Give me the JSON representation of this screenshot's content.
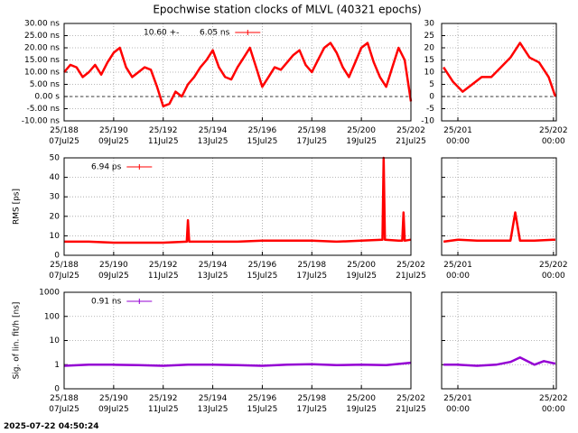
{
  "title": "Epochwise station clocks of MLVL (40321 epochs)",
  "timestamp": "2025-07-22 04:50:24",
  "chart_data": [
    {
      "type": "line",
      "legend_prefix": "10.60 +-",
      "x": [
        188,
        188.25,
        188.5,
        188.75,
        189,
        189.25,
        189.5,
        189.75,
        190,
        190.25,
        190.5,
        190.75,
        191,
        191.25,
        191.5,
        191.75,
        192,
        192.25,
        192.5,
        192.75,
        193,
        193.25,
        193.5,
        193.75,
        194,
        194.25,
        194.5,
        194.75,
        195,
        195.25,
        195.5,
        195.75,
        196,
        196.25,
        196.5,
        196.75,
        197,
        197.25,
        197.5,
        197.75,
        198,
        198.25,
        198.5,
        198.75,
        199,
        199.25,
        199.5,
        199.75,
        200,
        200.25,
        200.5,
        200.75,
        201,
        201.25,
        201.5,
        201.75,
        202
      ],
      "series": [
        {
          "name": "6.05 ns",
          "color": "#ff0000",
          "values": [
            10,
            13,
            12,
            8,
            10,
            13,
            9,
            14,
            18,
            20,
            12,
            8,
            10,
            12,
            11,
            4,
            -4,
            -3,
            2,
            0,
            5,
            8,
            12,
            15,
            19,
            12,
            8,
            7,
            12,
            16,
            20,
            12,
            4,
            8,
            12,
            11,
            14,
            17,
            19,
            13,
            10,
            15,
            20,
            22,
            18,
            12,
            8,
            14,
            20,
            22,
            14,
            8,
            4,
            12,
            20,
            15,
            -2
          ]
        }
      ],
      "xlim": [
        188,
        202
      ],
      "xticks": [
        {
          "value": 188,
          "label": "25/188\n07Jul25"
        },
        {
          "value": 190,
          "label": "25/190\n09Jul25"
        },
        {
          "value": 192,
          "label": "25/192\n11Jul25"
        },
        {
          "value": 194,
          "label": "25/194\n13Jul25"
        },
        {
          "value": 196,
          "label": "25/196\n15Jul25"
        },
        {
          "value": 198,
          "label": "25/198\n17Jul25"
        },
        {
          "value": 200,
          "label": "25/200\n19Jul25"
        },
        {
          "value": 202,
          "label": "25/202\n21Jul25"
        }
      ],
      "ylim": [
        -10,
        30
      ],
      "yticks": [
        {
          "value": -10,
          "label": "-10.00 ns"
        },
        {
          "value": -5,
          "label": "-5.00 ns"
        },
        {
          "value": 0,
          "label": "0.00 s"
        },
        {
          "value": 5,
          "label": "5.00 ns"
        },
        {
          "value": 10,
          "label": "10.00 ns"
        },
        {
          "value": 15,
          "label": "15.00 ns"
        },
        {
          "value": 20,
          "label": "20.00 ns"
        },
        {
          "value": 25,
          "label": "25.00 ns"
        },
        {
          "value": 30,
          "label": "30.00 ns"
        }
      ],
      "grid": true,
      "zero_line": true,
      "show_ytick_labels": true
    },
    {
      "type": "line",
      "x": [
        200.85,
        200.95,
        201.05,
        201.15,
        201.25,
        201.35,
        201.45,
        201.55,
        201.65,
        201.75,
        201.85,
        201.95,
        202.02
      ],
      "series": [
        {
          "color": "#ff0000",
          "values": [
            12,
            6,
            2,
            5,
            8,
            8,
            12,
            16,
            22,
            16,
            14,
            8,
            0
          ]
        }
      ],
      "xlim": [
        200.83,
        202.03
      ],
      "xticks": [
        {
          "value": 201,
          "label": "25/201\n00:00"
        },
        {
          "value": 202,
          "label": "25/202\n00:00"
        }
      ],
      "ylim": [
        -10,
        30
      ],
      "yticks": [
        -10,
        -5,
        0,
        5,
        10,
        15,
        20,
        25,
        30
      ],
      "grid": true,
      "zero_line": true,
      "show_ytick_labels": true
    },
    {
      "type": "line",
      "ylabel": "RMS [ps]",
      "x": [
        188,
        189,
        190,
        191,
        192,
        192.95,
        193,
        193.05,
        194,
        195,
        196,
        197,
        198,
        199,
        200,
        200.85,
        200.9,
        200.95,
        201.5,
        201.65,
        201.7,
        201.75,
        202
      ],
      "series": [
        {
          "name": "6.94 ps",
          "color": "#ff0000",
          "values": [
            7,
            7,
            6.5,
            6.5,
            6.5,
            7,
            18,
            7,
            7,
            7,
            7.5,
            7.5,
            7.5,
            7,
            7.5,
            8,
            50,
            8,
            7.5,
            7.5,
            22,
            7.5,
            8
          ]
        }
      ],
      "xlim": [
        188,
        202
      ],
      "xticks": [
        {
          "value": 188,
          "label": "25/188\n07Jul25"
        },
        {
          "value": 190,
          "label": "25/190\n09Jul25"
        },
        {
          "value": 192,
          "label": "25/192\n11Jul25"
        },
        {
          "value": 194,
          "label": "25/194\n13Jul25"
        },
        {
          "value": 196,
          "label": "25/196\n15Jul25"
        },
        {
          "value": 198,
          "label": "25/198\n17Jul25"
        },
        {
          "value": 200,
          "label": "25/200\n19Jul25"
        },
        {
          "value": 202,
          "label": "25/202\n21Jul25"
        }
      ],
      "ylim": [
        0,
        50
      ],
      "yticks": [
        0,
        10,
        20,
        30,
        40,
        50
      ],
      "grid": true,
      "show_ytick_labels": true
    },
    {
      "type": "line",
      "x": [
        200.85,
        201.0,
        201.2,
        201.4,
        201.55,
        201.6,
        201.65,
        201.8,
        202.0,
        202.02
      ],
      "series": [
        {
          "color": "#ff0000",
          "values": [
            7,
            8,
            7.5,
            7.5,
            7.5,
            22,
            7.5,
            7.5,
            8,
            8
          ]
        }
      ],
      "xlim": [
        200.83,
        202.03
      ],
      "xticks": [
        {
          "value": 201,
          "label": "25/201\n00:00"
        },
        {
          "value": 202,
          "label": "25/202\n00:00"
        }
      ],
      "ylim": [
        0,
        50
      ],
      "yticks": [
        0,
        10,
        20,
        30,
        40,
        50
      ],
      "grid": true,
      "show_ytick_labels": false
    },
    {
      "type": "line",
      "ylabel": "Sig. of lin. fit/h [ns]",
      "log_y": true,
      "x": [
        188,
        189,
        190,
        191,
        192,
        193,
        194,
        195,
        196,
        197,
        198,
        199,
        200,
        201,
        202
      ],
      "series": [
        {
          "name": "0.91 ns",
          "color": "#9400d3",
          "values": [
            0.9,
            1,
            1,
            0.95,
            0.9,
            1,
            1,
            0.95,
            0.9,
            1,
            1.05,
            0.95,
            1,
            0.95,
            1.2
          ]
        }
      ],
      "xlim": [
        188,
        202
      ],
      "xticks": [
        {
          "value": 188,
          "label": "25/188\n07Jul25"
        },
        {
          "value": 190,
          "label": "25/190\n09Jul25"
        },
        {
          "value": 192,
          "label": "25/192\n11Jul25"
        },
        {
          "value": 194,
          "label": "25/194\n13Jul25"
        },
        {
          "value": 196,
          "label": "25/196\n15Jul25"
        },
        {
          "value": 198,
          "label": "25/198\n17Jul25"
        },
        {
          "value": 200,
          "label": "25/200\n19Jul25"
        },
        {
          "value": 202,
          "label": "25/202\n21Jul25"
        }
      ],
      "ylim": [
        0.1,
        1000
      ],
      "yticks": [
        {
          "value": 0.1,
          "label": "0"
        },
        1,
        10,
        100,
        1000
      ],
      "grid": true,
      "show_ytick_labels": true
    },
    {
      "type": "line",
      "log_y": true,
      "x": [
        200.85,
        201.0,
        201.2,
        201.4,
        201.55,
        201.65,
        201.8,
        201.9,
        202.02
      ],
      "series": [
        {
          "color": "#9400d3",
          "values": [
            1,
            1,
            0.9,
            1,
            1.3,
            2,
            1,
            1.4,
            1.1
          ]
        }
      ],
      "xlim": [
        200.83,
        202.03
      ],
      "xticks": [
        {
          "value": 201,
          "label": "25/201\n00:00"
        },
        {
          "value": 202,
          "label": "25/202\n00:00"
        }
      ],
      "ylim": [
        0.1,
        1000
      ],
      "yticks": [
        {
          "value": 0.1,
          "label": "0"
        },
        1,
        10,
        100,
        1000
      ],
      "grid": true,
      "show_ytick_labels": false
    }
  ]
}
